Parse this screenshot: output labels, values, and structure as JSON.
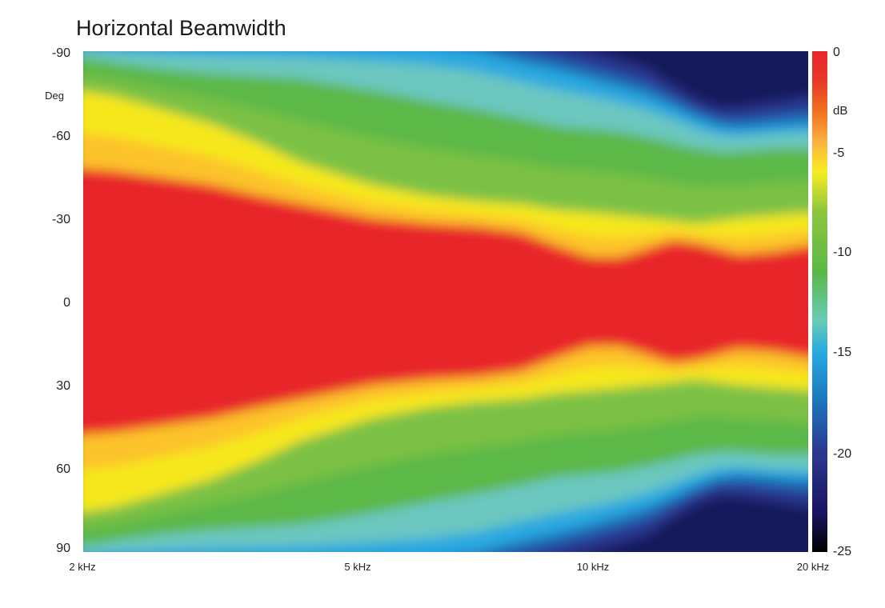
{
  "chart_data": {
    "type": "heatmap",
    "title": "Horizontal Beamwidth",
    "y_unit_label": "Deg",
    "y_ticks": [
      "-90",
      "-60",
      "-30",
      "0",
      "30",
      "60",
      "90"
    ],
    "y_tick_values": [
      -90,
      -60,
      -30,
      0,
      30,
      60,
      90
    ],
    "ylim": [
      -90,
      90
    ],
    "x_scale": "log",
    "x_ticks": [
      "2 kHz",
      "5 kHz",
      "10 kHz",
      "20 kHz"
    ],
    "x_tick_values": [
      2000,
      5000,
      10000,
      20000
    ],
    "xlim": [
      2000,
      20000
    ],
    "x_freqs_hz": [
      2000,
      2200,
      2500,
      3000,
      3500,
      4000,
      5000,
      6000,
      7000,
      8000,
      9000,
      10000,
      11000,
      12000,
      13000,
      14000,
      15000,
      16000,
      18000,
      20000
    ],
    "beamwidth_edges_deg": [
      {
        "minus3db": 48,
        "minus6db": 76,
        "minus10db": 88,
        "minus15db": 92,
        "minus20db": 96
      },
      {
        "minus3db": 47,
        "minus6db": 74,
        "minus10db": 86,
        "minus15db": 92,
        "minus20db": 96
      },
      {
        "minus3db": 45,
        "minus6db": 70,
        "minus10db": 84,
        "minus15db": 92,
        "minus20db": 96
      },
      {
        "minus3db": 42,
        "minus6db": 64,
        "minus10db": 82,
        "minus15db": 92,
        "minus20db": 96
      },
      {
        "minus3db": 38,
        "minus6db": 57,
        "minus10db": 81,
        "minus15db": 92,
        "minus20db": 96
      },
      {
        "minus3db": 35,
        "minus6db": 50,
        "minus10db": 80,
        "minus15db": 92,
        "minus20db": 96
      },
      {
        "minus3db": 30,
        "minus6db": 42,
        "minus10db": 76,
        "minus15db": 92,
        "minus20db": 96
      },
      {
        "minus3db": 28,
        "minus6db": 38,
        "minus10db": 72,
        "minus15db": 92,
        "minus20db": 96
      },
      {
        "minus3db": 27,
        "minus6db": 36,
        "minus10db": 69,
        "minus15db": 90,
        "minus20db": 96
      },
      {
        "minus3db": 25,
        "minus6db": 35,
        "minus10db": 66,
        "minus15db": 86,
        "minus20db": 96
      },
      {
        "minus3db": 20,
        "minus6db": 33,
        "minus10db": 63,
        "minus15db": 83,
        "minus20db": 93
      },
      {
        "minus3db": 16,
        "minus6db": 32,
        "minus10db": 62,
        "minus15db": 80,
        "minus20db": 90
      },
      {
        "minus3db": 16,
        "minus6db": 31,
        "minus10db": 61,
        "minus15db": 77,
        "minus20db": 87
      },
      {
        "minus3db": 19,
        "minus6db": 30,
        "minus10db": 59,
        "minus15db": 74,
        "minus20db": 84
      },
      {
        "minus3db": 22,
        "minus6db": 29,
        "minus10db": 57,
        "minus15db": 70,
        "minus20db": 78
      },
      {
        "minus3db": 21,
        "minus6db": 28,
        "minus10db": 55,
        "minus15db": 66,
        "minus20db": 73
      },
      {
        "minus3db": 19,
        "minus6db": 29,
        "minus10db": 54,
        "minus15db": 63,
        "minus20db": 70
      },
      {
        "minus3db": 17,
        "minus6db": 30,
        "minus10db": 54,
        "minus15db": 62,
        "minus20db": 70
      },
      {
        "minus3db": 18,
        "minus6db": 31,
        "minus10db": 55,
        "minus15db": 63,
        "minus20db": 72
      },
      {
        "minus3db": 20,
        "minus6db": 32,
        "minus10db": 55,
        "minus15db": 64,
        "minus20db": 74
      }
    ],
    "colorbar": {
      "unit": "dB",
      "ticks": [
        "0",
        "-5",
        "-10",
        "-15",
        "-20",
        "-25"
      ],
      "tick_values": [
        0,
        -5,
        -10,
        -15,
        -20,
        -25
      ],
      "range": [
        -25,
        0
      ],
      "stops": [
        {
          "db": 0,
          "color": "#e8262a"
        },
        {
          "db": -1.5,
          "color": "#e83a27"
        },
        {
          "db": -3,
          "color": "#f37021"
        },
        {
          "db": -4.5,
          "color": "#fbb040"
        },
        {
          "db": -6,
          "color": "#f8ed20"
        },
        {
          "db": -8,
          "color": "#8dc63f"
        },
        {
          "db": -11,
          "color": "#5bb846"
        },
        {
          "db": -13.5,
          "color": "#66ccb8"
        },
        {
          "db": -15,
          "color": "#27aae1"
        },
        {
          "db": -17.5,
          "color": "#1c75bc"
        },
        {
          "db": -20,
          "color": "#2b3990"
        },
        {
          "db": -23,
          "color": "#1b1464"
        },
        {
          "db": -25,
          "color": "#000000"
        }
      ]
    }
  }
}
